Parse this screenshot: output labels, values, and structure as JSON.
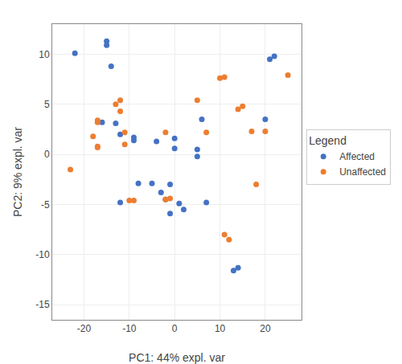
{
  "chart_data": {
    "type": "scatter",
    "xlabel": "PC1: 44% expl. var",
    "ylabel": "PC2: 9% expl. var",
    "legend_title": "Legend",
    "legend": "right",
    "grid": true,
    "marker": "circle",
    "xlim": [
      -27,
      28
    ],
    "ylim": [
      -16.5,
      13
    ],
    "xticks": [
      -20,
      -10,
      0,
      10,
      20
    ],
    "yticks": [
      -15,
      -10,
      -5,
      0,
      5,
      10
    ],
    "series": [
      {
        "name": "Affected",
        "color": "#4472C4",
        "x": [
          -22,
          -16,
          -15,
          -15,
          -14,
          -13,
          -12,
          -12,
          -9,
          -9,
          -8,
          -5,
          -4,
          -3,
          -2,
          -1,
          -1,
          0,
          0,
          1,
          2,
          5,
          5,
          6,
          7,
          13,
          14,
          20,
          21,
          22
        ],
        "values": [
          10.1,
          3.2,
          11.3,
          10.9,
          8.8,
          3.1,
          -4.8,
          2.0,
          1.7,
          1.4,
          -2.9,
          -2.9,
          1.3,
          -3.8,
          -4.5,
          -3.0,
          -5.9,
          0.6,
          1.6,
          -4.9,
          -5.5,
          -0.2,
          0.5,
          3.5,
          -4.8,
          -11.6,
          -11.3,
          3.5,
          9.5,
          9.8
        ]
      },
      {
        "name": "Unaffected",
        "color": "#ED7D31",
        "x": [
          -23,
          -18,
          -17,
          -17,
          -17,
          -17,
          -13,
          -12,
          -12,
          -11,
          -11,
          -10,
          -9,
          -2,
          -2,
          -1,
          5,
          7,
          10,
          11,
          11,
          12,
          14,
          15,
          17,
          18,
          20,
          25
        ],
        "values": [
          -1.5,
          1.8,
          3.2,
          0.7,
          0.8,
          3.4,
          5.0,
          5.4,
          4.3,
          1.0,
          2.2,
          -4.6,
          -4.6,
          2.2,
          -4.5,
          -4.4,
          5.4,
          2.2,
          7.6,
          7.7,
          -8.0,
          -8.5,
          4.5,
          4.8,
          2.3,
          -3.0,
          2.3,
          7.9
        ]
      }
    ]
  }
}
